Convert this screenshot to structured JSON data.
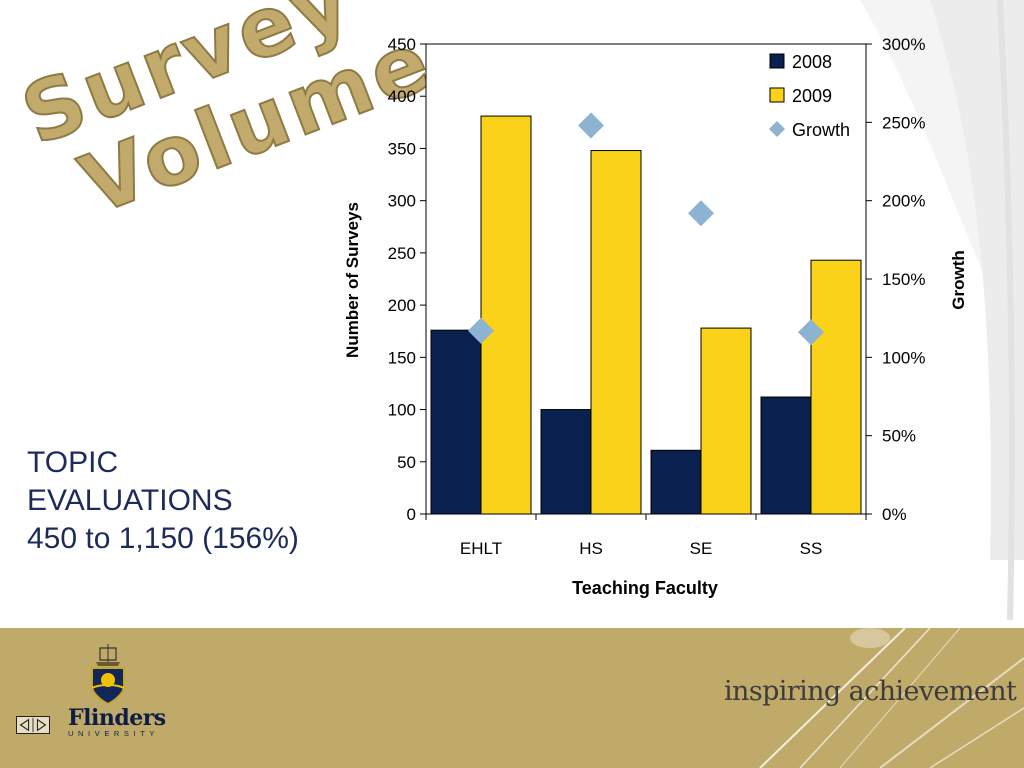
{
  "slide": {
    "title_lines": [
      "Survey",
      "Volume"
    ],
    "topic_lines": [
      "TOPIC",
      "EVALUATIONS",
      "450 to 1,150 (156%)"
    ],
    "tagline": "inspiring achievement",
    "university_name": "Flinders",
    "university_sub": "UNIVERSITY"
  },
  "chart_data": {
    "type": "bar",
    "title": "",
    "xlabel": "Teaching Faculty",
    "ylabel": "Number of Surveys",
    "y2label": "Growth",
    "categories": [
      "EHLT",
      "HS",
      "SE",
      "SS"
    ],
    "ylim": [
      0,
      450
    ],
    "yticks": [
      0,
      50,
      100,
      150,
      200,
      250,
      300,
      350,
      400,
      450
    ],
    "y2lim": [
      0,
      3
    ],
    "y2ticks": [
      "0%",
      "50%",
      "100%",
      "150%",
      "200%",
      "250%",
      "300%"
    ],
    "series": [
      {
        "name": "2008",
        "type": "bar",
        "color": "#0a2150",
        "values": [
          176,
          100,
          61,
          112
        ]
      },
      {
        "name": "2009",
        "type": "bar",
        "color": "#fad21a",
        "values": [
          381,
          348,
          178,
          243
        ]
      },
      {
        "name": "Growth",
        "type": "scatter",
        "axis": "secondary",
        "marker": "diamond",
        "color": "#8db3d2",
        "values": [
          1.17,
          2.48,
          1.92,
          1.16
        ]
      }
    ],
    "legend": {
      "position": "top-right",
      "entries": [
        "2008",
        "2009",
        "Growth"
      ]
    },
    "grid": false
  }
}
